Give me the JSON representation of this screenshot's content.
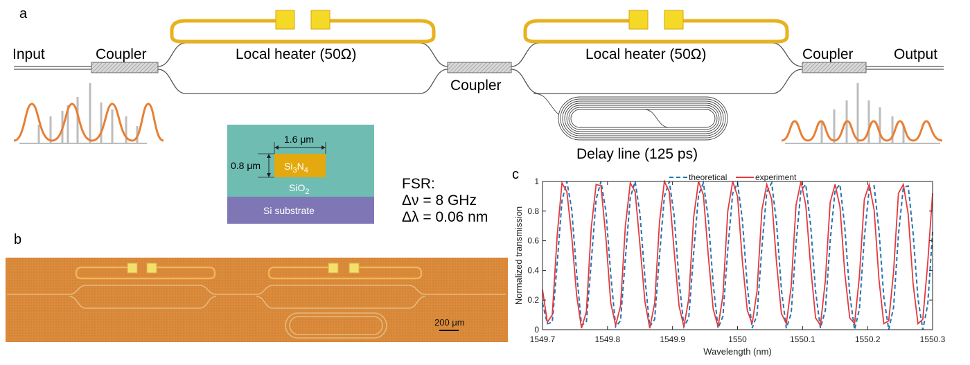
{
  "panels": {
    "a": "a",
    "b": "b",
    "c": "c"
  },
  "schematic": {
    "input": "Input",
    "output": "Output",
    "coupler_left": "Coupler",
    "coupler_mid": "Coupler",
    "coupler_right": "Coupler",
    "heater_left": "Local heater (50Ω)",
    "heater_right": "Local heater (50Ω)",
    "delay_line": "Delay line (125 ps)",
    "colors": {
      "heater": "#e8b21e",
      "pad": "#f5d927",
      "waveguide": "#555555",
      "comb_line": "#bdbdbd",
      "filter_curve": "#e87f35"
    }
  },
  "cross_section": {
    "width_label": "1.6 μm",
    "height_label": "0.8 μm",
    "core_label_base": "Si",
    "core_sub1": "3",
    "core_label_mid": "N",
    "core_sub2": "4",
    "cladding_label_base": "SiO",
    "cladding_sub": "2",
    "substrate_label": "Si substrate",
    "colors": {
      "cladding": "#6fbcb3",
      "core": "#e3a90f",
      "substrate": "#7f77b5"
    }
  },
  "fsr": {
    "title": "FSR:",
    "line1": "Δν = 8 GHz",
    "line2": "Δλ = 0.06 nm"
  },
  "photo": {
    "scale_bar": "200 μm",
    "colors": {
      "background": "#d98a3a",
      "pad": "#f2e06a",
      "trace": "#f0b457"
    }
  },
  "chart_data": {
    "type": "line",
    "xlabel": "Wavelength (nm)",
    "ylabel": "Normalized transmission",
    "xlim": [
      1549.7,
      1550.3
    ],
    "ylim": [
      0,
      1
    ],
    "xticks": [
      "1549.7",
      "1549.8",
      "1549.9",
      "1550",
      "1550.1",
      "1550.2",
      "1550.3"
    ],
    "yticks": [
      "0",
      "0.2",
      "0.4",
      "0.6",
      "0.8",
      "1"
    ],
    "legend_position": "top",
    "grid": false,
    "series": [
      {
        "name": "theoretical",
        "style": "dashed",
        "color": "#1f77b4",
        "x": [
          1549.7,
          1549.7075,
          1549.715,
          1549.7225,
          1549.73,
          1549.7375,
          1549.745,
          1549.7525,
          1549.76,
          1549.7675,
          1549.775,
          1549.7825,
          1549.79,
          1549.7975,
          1549.805,
          1549.8125,
          1549.82,
          1549.8275,
          1549.835,
          1549.8425,
          1549.85,
          1549.8575,
          1549.865,
          1549.8725,
          1549.88,
          1549.8875,
          1549.895,
          1549.9025,
          1549.91,
          1549.9175,
          1549.925,
          1549.9325,
          1549.94,
          1549.9475,
          1549.955,
          1549.9625,
          1549.97,
          1549.9775,
          1549.985,
          1549.9925,
          1550.0,
          1550.0075,
          1550.015,
          1550.0225,
          1550.03,
          1550.0375,
          1550.045,
          1550.0525,
          1550.06,
          1550.0675,
          1550.075,
          1550.0825,
          1550.09,
          1550.0975,
          1550.105,
          1550.1125,
          1550.12,
          1550.1275,
          1550.135,
          1550.1425,
          1550.15,
          1550.1575,
          1550.165,
          1550.1725,
          1550.18,
          1550.1875,
          1550.195,
          1550.2025,
          1550.21,
          1550.2175,
          1550.225,
          1550.2325,
          1550.24,
          1550.2475,
          1550.255,
          1550.2625,
          1550.27,
          1550.2775,
          1550.285,
          1550.2925,
          1550.3
        ],
        "y": [
          0.18,
          0.04,
          0.05,
          0.44,
          0.87,
          1.0,
          0.81,
          0.38,
          0.03,
          0.05,
          0.46,
          0.88,
          1.0,
          0.8,
          0.37,
          0.02,
          0.06,
          0.48,
          0.89,
          1.0,
          0.78,
          0.35,
          0.02,
          0.07,
          0.5,
          0.9,
          1.0,
          0.77,
          0.33,
          0.02,
          0.08,
          0.52,
          0.91,
          0.99,
          0.75,
          0.31,
          0.01,
          0.09,
          0.54,
          0.92,
          0.99,
          0.74,
          0.29,
          0.01,
          0.1,
          0.56,
          0.93,
          0.99,
          0.72,
          0.27,
          0.01,
          0.11,
          0.58,
          0.94,
          0.98,
          0.7,
          0.26,
          0.01,
          0.13,
          0.6,
          0.94,
          0.98,
          0.69,
          0.24,
          0.0,
          0.14,
          0.62,
          0.95,
          0.97,
          0.67,
          0.22,
          0.0,
          0.15,
          0.64,
          0.96,
          0.97,
          0.65,
          0.21,
          0.0,
          0.17,
          0.66
        ]
      },
      {
        "name": "experiment",
        "style": "solid",
        "color": "#e8383d",
        "x": [
          1549.7,
          1549.7075,
          1549.715,
          1549.7225,
          1549.73,
          1549.7375,
          1549.745,
          1549.7525,
          1549.76,
          1549.7675,
          1549.775,
          1549.7825,
          1549.79,
          1549.7975,
          1549.805,
          1549.8125,
          1549.82,
          1549.8275,
          1549.835,
          1549.8425,
          1549.85,
          1549.8575,
          1549.865,
          1549.8725,
          1549.88,
          1549.8875,
          1549.895,
          1549.9025,
          1549.91,
          1549.9175,
          1549.925,
          1549.9325,
          1549.94,
          1549.9475,
          1549.955,
          1549.9625,
          1549.97,
          1549.9775,
          1549.985,
          1549.9925,
          1550.0,
          1550.0075,
          1550.015,
          1550.0225,
          1550.03,
          1550.0375,
          1550.045,
          1550.0525,
          1550.06,
          1550.0675,
          1550.075,
          1550.0825,
          1550.09,
          1550.0975,
          1550.105,
          1550.1125,
          1550.12,
          1550.1275,
          1550.135,
          1550.1425,
          1550.15,
          1550.1575,
          1550.165,
          1550.1725,
          1550.18,
          1550.1875,
          1550.195,
          1550.2025,
          1550.21,
          1550.2175,
          1550.225,
          1550.2325,
          1550.24,
          1550.2475,
          1550.255,
          1550.2625,
          1550.27,
          1550.2775,
          1550.285,
          1550.2925,
          1550.3
        ],
        "y": [
          0.27,
          0.05,
          0.1,
          0.63,
          0.99,
          0.93,
          0.63,
          0.23,
          0.01,
          0.12,
          0.69,
          0.98,
          0.97,
          0.62,
          0.18,
          0.03,
          0.16,
          0.7,
          0.99,
          0.93,
          0.57,
          0.19,
          0.01,
          0.18,
          0.73,
          1.0,
          0.93,
          0.53,
          0.16,
          0.02,
          0.21,
          0.76,
          1.0,
          0.91,
          0.5,
          0.14,
          0.02,
          0.23,
          0.8,
          1.0,
          0.9,
          0.46,
          0.13,
          0.04,
          0.26,
          0.81,
          0.98,
          0.88,
          0.45,
          0.11,
          0.04,
          0.29,
          0.84,
          1.0,
          0.84,
          0.42,
          0.08,
          0.03,
          0.33,
          0.86,
          0.98,
          0.83,
          0.38,
          0.08,
          0.04,
          0.36,
          0.88,
          0.98,
          0.81,
          0.34,
          0.04,
          0.06,
          0.39,
          0.92,
          0.98,
          0.78,
          0.31,
          0.04,
          0.07,
          0.45,
          0.92
        ]
      }
    ]
  }
}
